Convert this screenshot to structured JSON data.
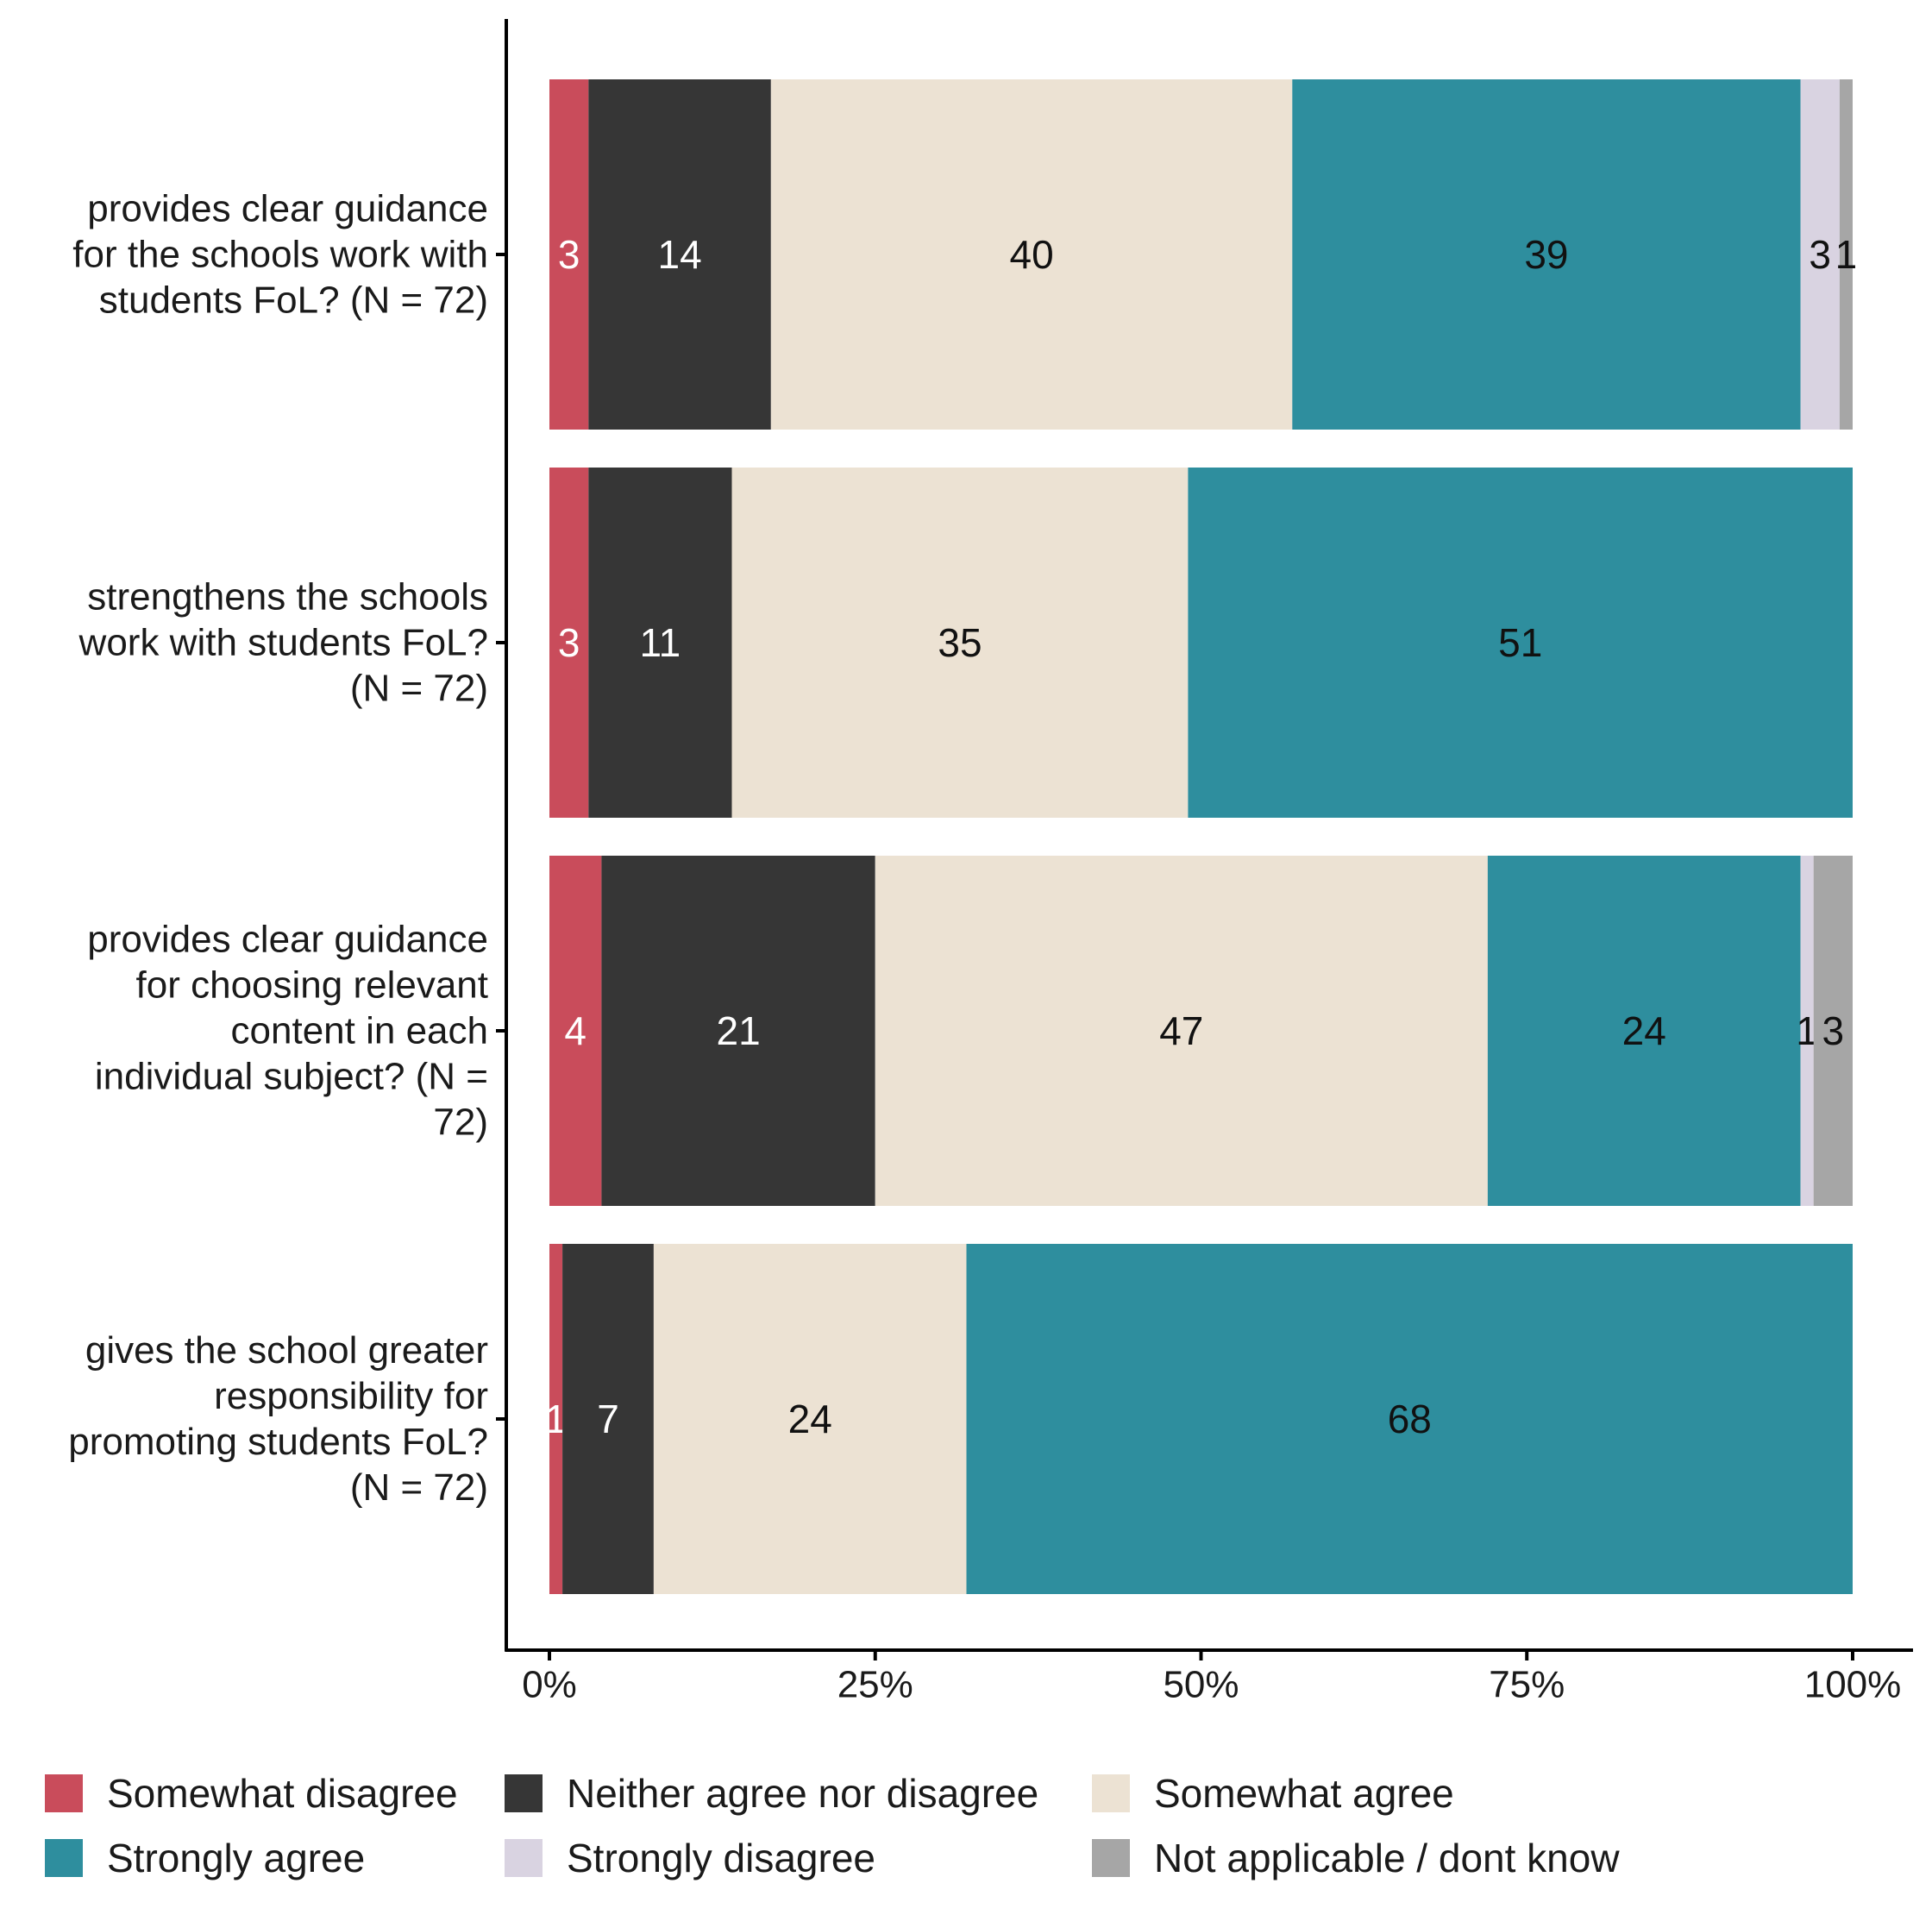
{
  "chart_data": {
    "type": "bar",
    "orientation": "horizontal",
    "stacked": true,
    "title": "",
    "xlabel": "",
    "ylabel": "",
    "xlim": [
      0,
      100
    ],
    "x_ticks": [
      "0%",
      "25%",
      "50%",
      "75%",
      "100%"
    ],
    "categories": [
      [
        "provides clear guidance",
        "for the schools work with",
        "students FoL? (N = 72)"
      ],
      [
        "strengthens the schools",
        "work with students FoL?",
        "(N = 72)"
      ],
      [
        "provides clear guidance",
        "for choosing relevant",
        "content in each",
        "individual subject? (N =",
        "72)"
      ],
      [
        "gives the school greater",
        "responsibility for",
        "promoting students FoL?",
        "(N = 72)"
      ]
    ],
    "series": [
      {
        "name": "Somewhat disagree",
        "color": "#c94c5b",
        "label_color": "#ffffff",
        "values": [
          3,
          3,
          4,
          1
        ]
      },
      {
        "name": "Neither agree nor disagree",
        "color": "#363636",
        "label_color": "#ffffff",
        "values": [
          14,
          11,
          21,
          7
        ]
      },
      {
        "name": "Somewhat agree",
        "color": "#ece2d3",
        "label_color": "#111111",
        "values": [
          40,
          35,
          47,
          24
        ]
      },
      {
        "name": "Strongly agree",
        "color": "#2e8e9e",
        "label_color": "#111111",
        "values": [
          39,
          51,
          24,
          68
        ]
      },
      {
        "name": "Strongly disagree",
        "color": "#d9d3e1",
        "label_color": "#111111",
        "values": [
          3,
          0,
          1,
          0
        ]
      },
      {
        "name": "Not applicable / dont know",
        "color": "#a6a6a6",
        "label_color": "#111111",
        "values": [
          1,
          0,
          3,
          0
        ]
      }
    ],
    "legend_position": "bottom",
    "grid": false
  }
}
